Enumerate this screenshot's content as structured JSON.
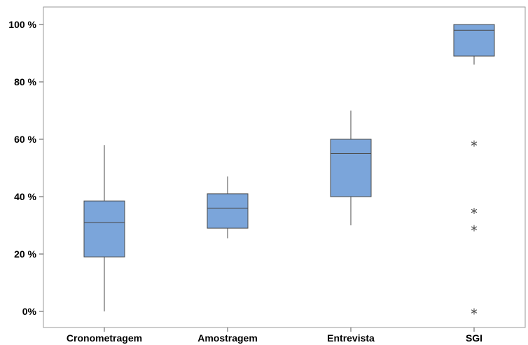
{
  "chart_data": {
    "type": "boxplot",
    "categories": [
      "Cronometragem",
      "Amostragem",
      "Entrevista",
      "SGI"
    ],
    "y_ticks": [
      "0%",
      "20 %",
      "40 %",
      "60 %",
      "80 %",
      "100 %"
    ],
    "y_tick_values": [
      0,
      20,
      40,
      60,
      80,
      100
    ],
    "ylim": [
      -6,
      106
    ],
    "box_color": "#7BA5DA",
    "outline_color": "#4A4A4A",
    "outlier_color": "#555555",
    "boxes": [
      {
        "category": "Cronometragem",
        "whisker_low": 0,
        "q1": 19,
        "median": 31,
        "q3": 38.5,
        "whisker_high": 58,
        "outliers": []
      },
      {
        "category": "Amostragem",
        "whisker_low": 25.5,
        "q1": 29,
        "median": 36,
        "q3": 41,
        "whisker_high": 47,
        "outliers": []
      },
      {
        "category": "Entrevista",
        "whisker_low": 30,
        "q1": 40,
        "median": 55,
        "q3": 60,
        "whisker_high": 70,
        "outliers": []
      },
      {
        "category": "SGI",
        "whisker_low": 86,
        "q1": 89,
        "median": 98,
        "q3": 100,
        "whisker_high": 100,
        "outliers": [
          58.5,
          35,
          29,
          0
        ]
      }
    ],
    "title": "",
    "xlabel": "",
    "ylabel": "",
    "grid": false
  }
}
